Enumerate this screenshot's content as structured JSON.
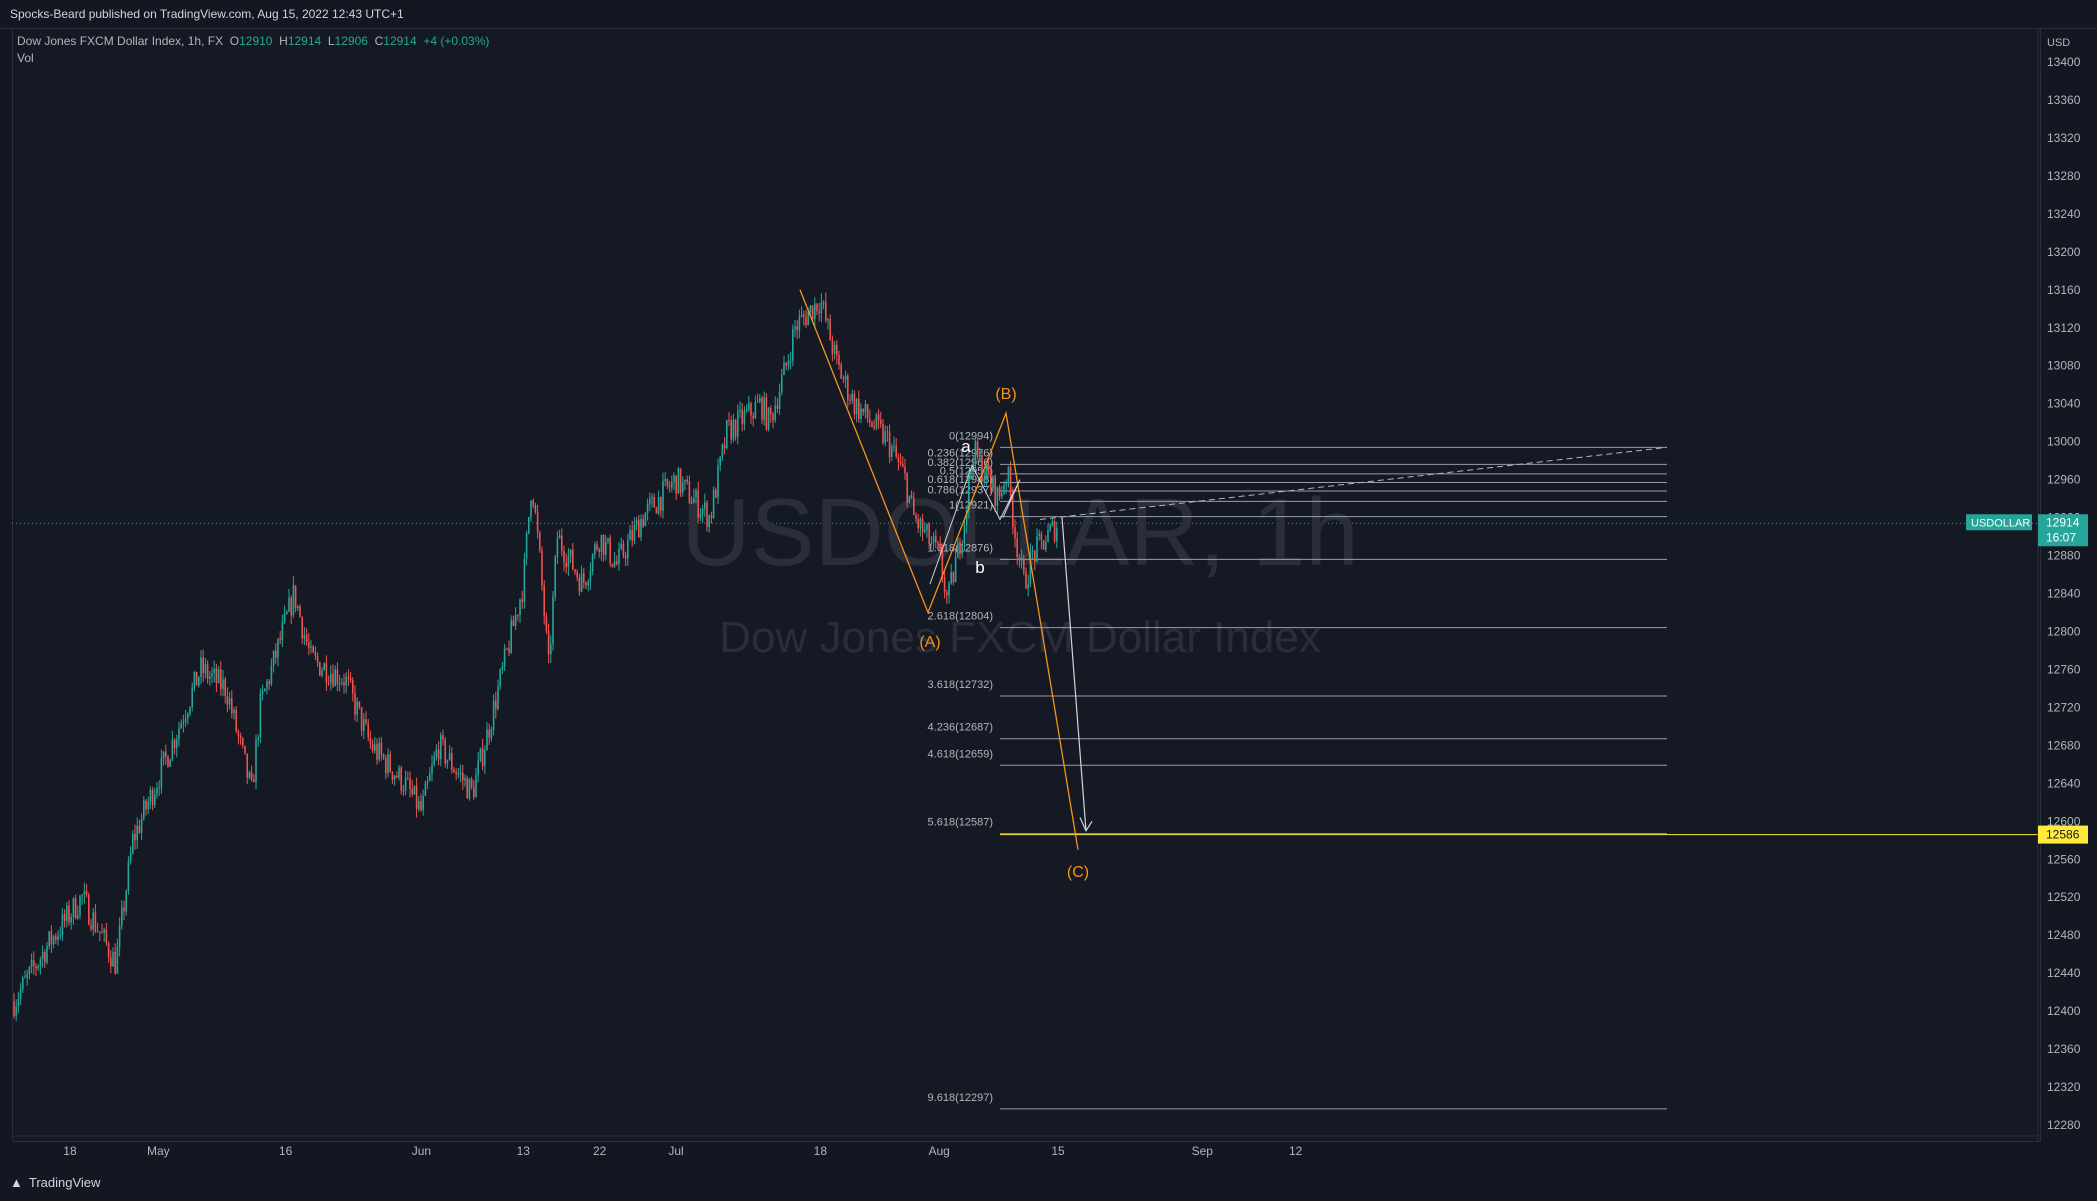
{
  "header": {
    "published": "Spocks-Beard published on TradingView.com, Aug 15, 2022 12:43 UTC+1"
  },
  "legend": {
    "title": "Dow Jones FXCM Dollar Index, 1h, FX",
    "o_label": "O",
    "o": "12910",
    "h_label": "H",
    "h": "12914",
    "l_label": "L",
    "l": "12906",
    "c_label": "C",
    "c": "12914",
    "change": "+4 (+0.03%)",
    "vol": "Vol"
  },
  "watermark": {
    "symbol": "USDOLLAR, 1h",
    "name": "Dow Jones FXCM Dollar Index"
  },
  "price_axis": {
    "currency": "USD",
    "ticks": [
      "13400",
      "13360",
      "13320",
      "13280",
      "13240",
      "13200",
      "13160",
      "13120",
      "13080",
      "13040",
      "13000",
      "12960",
      "12920",
      "12880",
      "12840",
      "12800",
      "12760",
      "12720",
      "12680",
      "12640",
      "12600",
      "12560",
      "12520",
      "12480",
      "12440",
      "12400",
      "12360",
      "12320",
      "12280"
    ]
  },
  "time_axis": {
    "ticks": [
      "18",
      "May",
      "16",
      "Jun",
      "13",
      "22",
      "Jul",
      "18",
      "Aug",
      "15",
      "Sep",
      "12"
    ]
  },
  "badges": {
    "symbol": "USDOLLAR",
    "price": "12914",
    "countdown": "16:07",
    "target": "12586"
  },
  "waves": {
    "A": "(A)",
    "B": "(B)",
    "C": "(C)",
    "a": "a",
    "b": "b"
  },
  "fib_levels": [
    {
      "label": "0(12994)",
      "value": 12994
    },
    {
      "label": "0.236(12976)",
      "value": 12976
    },
    {
      "label": "0.382(12966)",
      "value": 12966
    },
    {
      "label": "0.5(12957)",
      "value": 12957
    },
    {
      "label": "0.618(12948)",
      "value": 12948
    },
    {
      "label": "0.786(12937)",
      "value": 12937
    },
    {
      "label": "1(12921)",
      "value": 12921
    },
    {
      "label": "1.618(12876)",
      "value": 12876
    },
    {
      "label": "2.618(12804)",
      "value": 12804
    },
    {
      "label": "3.618(12732)",
      "value": 12732
    },
    {
      "label": "4.236(12687)",
      "value": 12687
    },
    {
      "label": "4.618(12659)",
      "value": 12659
    },
    {
      "label": "5.618(12587)",
      "value": 12587
    },
    {
      "label": "9.618(12297)",
      "value": 12297
    }
  ],
  "colors": {
    "up": "#26a69a",
    "down": "#ef5350",
    "wave": "#f7931a",
    "fib": "#b2b5be",
    "badge": "#26a69a",
    "target": "#ffeb3b"
  },
  "brand": "TradingView",
  "chart_data": {
    "type": "line",
    "title": "Dow Jones FXCM Dollar Index, 1h, FX",
    "ylabel": "USD",
    "ylim": [
      12260,
      13420
    ],
    "path_x": [
      "Apr 14",
      "Apr 18",
      "Apr 22",
      "Apr 26",
      "Apr 28",
      "May 3",
      "May 6",
      "May 9",
      "May 12",
      "May 13",
      "May 16",
      "May 17",
      "May 19",
      "May 23",
      "May 26",
      "May 30",
      "Jun 1",
      "Jun 3",
      "Jun 7",
      "Jun 9",
      "Jun 13",
      "Jun 14",
      "Jun 15",
      "Jun 16",
      "Jun 17",
      "Jun 20",
      "Jun 22",
      "Jun 24",
      "Jun 27",
      "Jun 30",
      "Jul 1",
      "Jul 5",
      "Jul 7",
      "Jul 11",
      "Jul 12",
      "Jul 14",
      "Jul 15",
      "Jul 18",
      "Jul 20",
      "Jul 22",
      "Jul 26",
      "Jul 28",
      "Jul 29",
      "Aug 1",
      "Aug 2",
      "Aug 4",
      "Aug 5",
      "Aug 8",
      "Aug 9",
      "Aug 10",
      "Aug 11",
      "Aug 12",
      "Aug 15"
    ],
    "path_y": [
      12410,
      12470,
      12520,
      12450,
      12580,
      12690,
      12760,
      12740,
      12630,
      12720,
      12810,
      12840,
      12770,
      12750,
      12680,
      12640,
      12610,
      12680,
      12630,
      12700,
      12850,
      12960,
      12870,
      12760,
      12900,
      12850,
      12900,
      12870,
      12920,
      12950,
      12960,
      12920,
      13010,
      13040,
      13020,
      13080,
      13120,
      13150,
      13080,
      13040,
      13000,
      12960,
      12920,
      12880,
      12830,
      12920,
      12990,
      12940,
      12970,
      12900,
      12850,
      12880,
      12914
    ],
    "projection": {
      "A": 12820,
      "B": 13030,
      "C": 12570,
      "target": 12586
    }
  }
}
